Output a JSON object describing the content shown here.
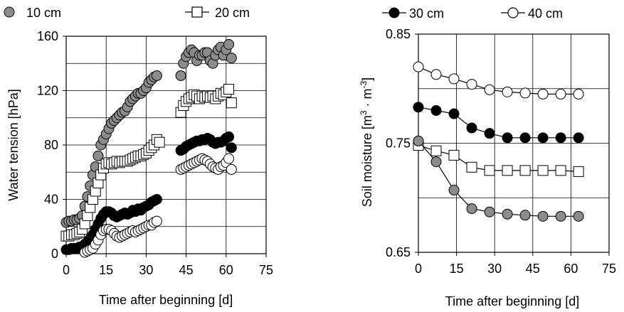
{
  "chart_data": [
    {
      "type": "scatter",
      "title": "",
      "xlabel": "Time after beginning [d]",
      "ylabel": "Water tension [hPa]",
      "xlim": [
        0,
        75
      ],
      "ylim": [
        0,
        160
      ],
      "xticks": [
        "0",
        "15",
        "30",
        "45",
        "60",
        "75"
      ],
      "yticks": [
        "0",
        "40",
        "80",
        "120",
        "160"
      ],
      "grid": true,
      "legend_position": "top",
      "series": [
        {
          "name": "10 cm",
          "marker": "circle",
          "fill": "#8c8c8c",
          "points": [
            [
              0,
              23
            ],
            [
              1,
              24
            ],
            [
              2,
              24
            ],
            [
              3,
              25
            ],
            [
              4,
              25
            ],
            [
              5,
              26
            ],
            [
              6,
              28
            ],
            [
              7,
              35
            ],
            [
              8,
              42
            ],
            [
              9,
              50
            ],
            [
              10,
              58
            ],
            [
              11,
              64
            ],
            [
              12,
              72
            ],
            [
              13,
              80
            ],
            [
              14,
              84
            ],
            [
              15,
              88
            ],
            [
              16,
              92
            ],
            [
              17,
              96
            ],
            [
              18,
              98
            ],
            [
              19,
              100
            ],
            [
              20,
              102
            ],
            [
              21,
              104
            ],
            [
              22,
              105
            ],
            [
              23,
              108
            ],
            [
              24,
              112
            ],
            [
              25,
              114
            ],
            [
              26,
              116
            ],
            [
              27,
              118
            ],
            [
              28,
              118
            ],
            [
              29,
              120
            ],
            [
              30,
              122
            ],
            [
              31,
              126
            ],
            [
              32,
              128
            ],
            [
              33,
              130
            ],
            [
              34,
              131
            ],
            [
              43,
              131
            ],
            [
              44,
              140
            ],
            [
              45,
              145
            ],
            [
              46,
              148
            ],
            [
              47,
              150
            ],
            [
              48,
              148
            ],
            [
              49,
              142
            ],
            [
              50,
              146
            ],
            [
              51,
              146
            ],
            [
              52,
              148
            ],
            [
              53,
              148
            ],
            [
              54,
              142
            ],
            [
              55,
              140
            ],
            [
              56,
              146
            ],
            [
              57,
              150
            ],
            [
              58,
              152
            ],
            [
              59,
              146
            ],
            [
              60,
              150
            ],
            [
              61,
              154
            ],
            [
              62,
              144
            ]
          ]
        },
        {
          "name": "20 cm",
          "marker": "square",
          "fill": "#ffffff",
          "points": [
            [
              0,
              13
            ],
            [
              1,
              13
            ],
            [
              2,
              14
            ],
            [
              3,
              14
            ],
            [
              4,
              15
            ],
            [
              5,
              16
            ],
            [
              6,
              18
            ],
            [
              7,
              22
            ],
            [
              8,
              28
            ],
            [
              9,
              34
            ],
            [
              10,
              40
            ],
            [
              11,
              46
            ],
            [
              12,
              52
            ],
            [
              13,
              58
            ],
            [
              14,
              63
            ],
            [
              15,
              66
            ],
            [
              16,
              67
            ],
            [
              17,
              66
            ],
            [
              18,
              67
            ],
            [
              19,
              68
            ],
            [
              20,
              67
            ],
            [
              21,
              68
            ],
            [
              22,
              68
            ],
            [
              23,
              68
            ],
            [
              24,
              69
            ],
            [
              25,
              70
            ],
            [
              26,
              71
            ],
            [
              27,
              72
            ],
            [
              28,
              72
            ],
            [
              29,
              73
            ],
            [
              30,
              74
            ],
            [
              31,
              76
            ],
            [
              32,
              78
            ],
            [
              33,
              80
            ],
            [
              34,
              84
            ],
            [
              35,
              82
            ],
            [
              43,
              104
            ],
            [
              44,
              109
            ],
            [
              45,
              112
            ],
            [
              46,
              114
            ],
            [
              47,
              115
            ],
            [
              48,
              117
            ],
            [
              49,
              116
            ],
            [
              50,
              114
            ],
            [
              51,
              116
            ],
            [
              52,
              115
            ],
            [
              53,
              116
            ],
            [
              54,
              115
            ],
            [
              55,
              116
            ],
            [
              56,
              114
            ],
            [
              57,
              116
            ],
            [
              58,
              118
            ],
            [
              59,
              117
            ],
            [
              60,
              119
            ],
            [
              61,
              121
            ],
            [
              62,
              111
            ]
          ]
        },
        {
          "name": "30 cm",
          "marker": "circle",
          "fill": "#000000",
          "points": [
            [
              0,
              3
            ],
            [
              1,
              3
            ],
            [
              2,
              4
            ],
            [
              3,
              4
            ],
            [
              4,
              4
            ],
            [
              5,
              5
            ],
            [
              6,
              5
            ],
            [
              7,
              7
            ],
            [
              8,
              9
            ],
            [
              9,
              11
            ],
            [
              10,
              14
            ],
            [
              11,
              18
            ],
            [
              12,
              22
            ],
            [
              13,
              26
            ],
            [
              14,
              29
            ],
            [
              15,
              31
            ],
            [
              16,
              31
            ],
            [
              17,
              30
            ],
            [
              18,
              28
            ],
            [
              19,
              27
            ],
            [
              20,
              28
            ],
            [
              21,
              29
            ],
            [
              22,
              30
            ],
            [
              23,
              29
            ],
            [
              24,
              30
            ],
            [
              25,
              32
            ],
            [
              26,
              31
            ],
            [
              27,
              33
            ],
            [
              28,
              32
            ],
            [
              29,
              34
            ],
            [
              30,
              35
            ],
            [
              31,
              36
            ],
            [
              32,
              38
            ],
            [
              33,
              39
            ],
            [
              34,
              40
            ],
            [
              43,
              76
            ],
            [
              44,
              77
            ],
            [
              45,
              79
            ],
            [
              46,
              80
            ],
            [
              47,
              81
            ],
            [
              48,
              82
            ],
            [
              49,
              83
            ],
            [
              50,
              83
            ],
            [
              51,
              84
            ],
            [
              52,
              84
            ],
            [
              53,
              85
            ],
            [
              54,
              84
            ],
            [
              55,
              82
            ],
            [
              56,
              81
            ],
            [
              57,
              82
            ],
            [
              58,
              82
            ],
            [
              59,
              83
            ],
            [
              60,
              85
            ],
            [
              61,
              86
            ],
            [
              62,
              78
            ]
          ]
        },
        {
          "name": "40 cm",
          "marker": "circle",
          "fill": "#ffffff",
          "points": [
            [
              7,
              1
            ],
            [
              8,
              2
            ],
            [
              9,
              3
            ],
            [
              10,
              4
            ],
            [
              11,
              7
            ],
            [
              12,
              10
            ],
            [
              13,
              14
            ],
            [
              14,
              17
            ],
            [
              15,
              18
            ],
            [
              16,
              18
            ],
            [
              17,
              17
            ],
            [
              18,
              15
            ],
            [
              19,
              13
            ],
            [
              20,
              12
            ],
            [
              21,
              13
            ],
            [
              22,
              14
            ],
            [
              23,
              15
            ],
            [
              24,
              16
            ],
            [
              25,
              17
            ],
            [
              26,
              16
            ],
            [
              27,
              17
            ],
            [
              28,
              18
            ],
            [
              29,
              19
            ],
            [
              30,
              20
            ],
            [
              31,
              21
            ],
            [
              32,
              21
            ],
            [
              33,
              23
            ],
            [
              34,
              24
            ],
            [
              43,
              62
            ],
            [
              44,
              63
            ],
            [
              45,
              64
            ],
            [
              46,
              65
            ],
            [
              47,
              66
            ],
            [
              48,
              67
            ],
            [
              49,
              68
            ],
            [
              50,
              69
            ],
            [
              51,
              70
            ],
            [
              52,
              69
            ],
            [
              53,
              68
            ],
            [
              54,
              66
            ],
            [
              55,
              64
            ],
            [
              56,
              63
            ],
            [
              57,
              62
            ],
            [
              58,
              64
            ],
            [
              59,
              65
            ],
            [
              60,
              67
            ],
            [
              61,
              70
            ],
            [
              62,
              62
            ]
          ]
        }
      ]
    },
    {
      "type": "line",
      "title": "",
      "xlabel": "Time after beginning [d]",
      "ylabel": "Soil moisture [m3 · m-3]",
      "ylabel_parts": [
        "Soil moisture [m",
        "3",
        " · m",
        "-3",
        "]"
      ],
      "xlim": [
        0,
        75
      ],
      "ylim": [
        0.65,
        0.85
      ],
      "xticks": [
        "0",
        "15",
        "30",
        "45",
        "60",
        "75"
      ],
      "yticks": [
        "0.65",
        "0.75",
        "0.85"
      ],
      "grid": true,
      "legend_position": "top",
      "x": [
        0,
        7,
        14,
        21,
        28,
        35,
        42,
        49,
        56,
        63
      ],
      "series": [
        {
          "name": "30 cm",
          "marker": "circle",
          "fill": "#000000",
          "values": [
            0.783,
            0.78,
            0.777,
            0.764,
            0.759,
            0.755,
            0.755,
            0.755,
            0.755,
            0.755
          ]
        },
        {
          "name": "40 cm",
          "marker": "circle",
          "fill": "#ffffff",
          "values": [
            0.82,
            0.813,
            0.809,
            0.804,
            0.799,
            0.797,
            0.796,
            0.795,
            0.795,
            0.795
          ]
        },
        {
          "name": "20 cm",
          "marker": "square",
          "fill": "#ffffff",
          "values": [
            0.748,
            0.743,
            0.739,
            0.728,
            0.725,
            0.725,
            0.725,
            0.725,
            0.725,
            0.724
          ]
        },
        {
          "name": "10 cm",
          "marker": "circle",
          "fill": "#8c8c8c",
          "values": [
            0.752,
            0.733,
            0.707,
            0.69,
            0.687,
            0.685,
            0.684,
            0.683,
            0.683,
            0.683
          ]
        }
      ]
    }
  ]
}
